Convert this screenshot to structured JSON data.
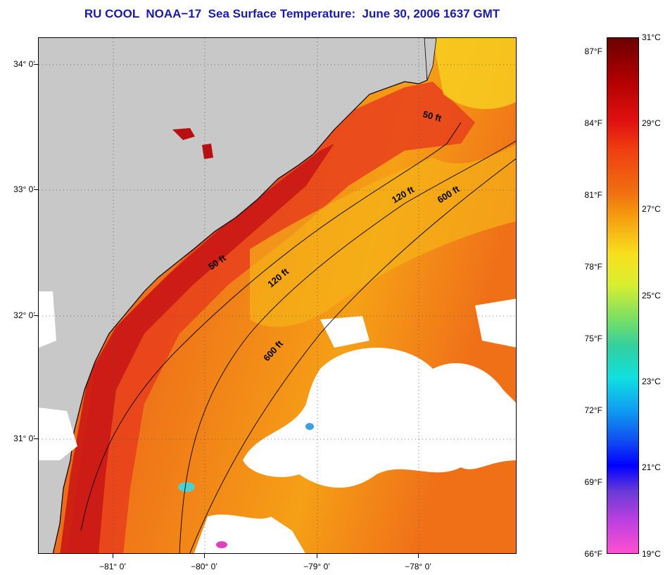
{
  "title": "RU COOL  NOAA−17  Sea Surface Temperature:  June 30, 2006 1637 GMT",
  "map": {
    "lat_ticks": [
      "34° 0’",
      "33° 0’",
      "32° 0’",
      "31° 0’"
    ],
    "lon_ticks": [
      "−81° 0’",
      "−80° 0’",
      "−79° 0’",
      "−78° 0’"
    ],
    "contours": {
      "c50a": "50 ft",
      "c50b": "50 ft",
      "c120a": "120 ft",
      "c120b": "120 ft",
      "c600a": "600 ft",
      "c600b": "600 ft"
    },
    "colors": {
      "land": "#c8c8c8",
      "cloud": "#ffffff",
      "warm": "#f05a18",
      "hot": "#c81010",
      "cool": "#f5a014"
    }
  },
  "colorbar": {
    "fahrenheit": [
      "87°F",
      "84°F",
      "81°F",
      "78°F",
      "75°F",
      "72°F",
      "69°F",
      "66°F"
    ],
    "celsius": [
      "31°C",
      "29°C",
      "27°C",
      "25°C",
      "23°C",
      "21°C",
      "19°C"
    ]
  }
}
